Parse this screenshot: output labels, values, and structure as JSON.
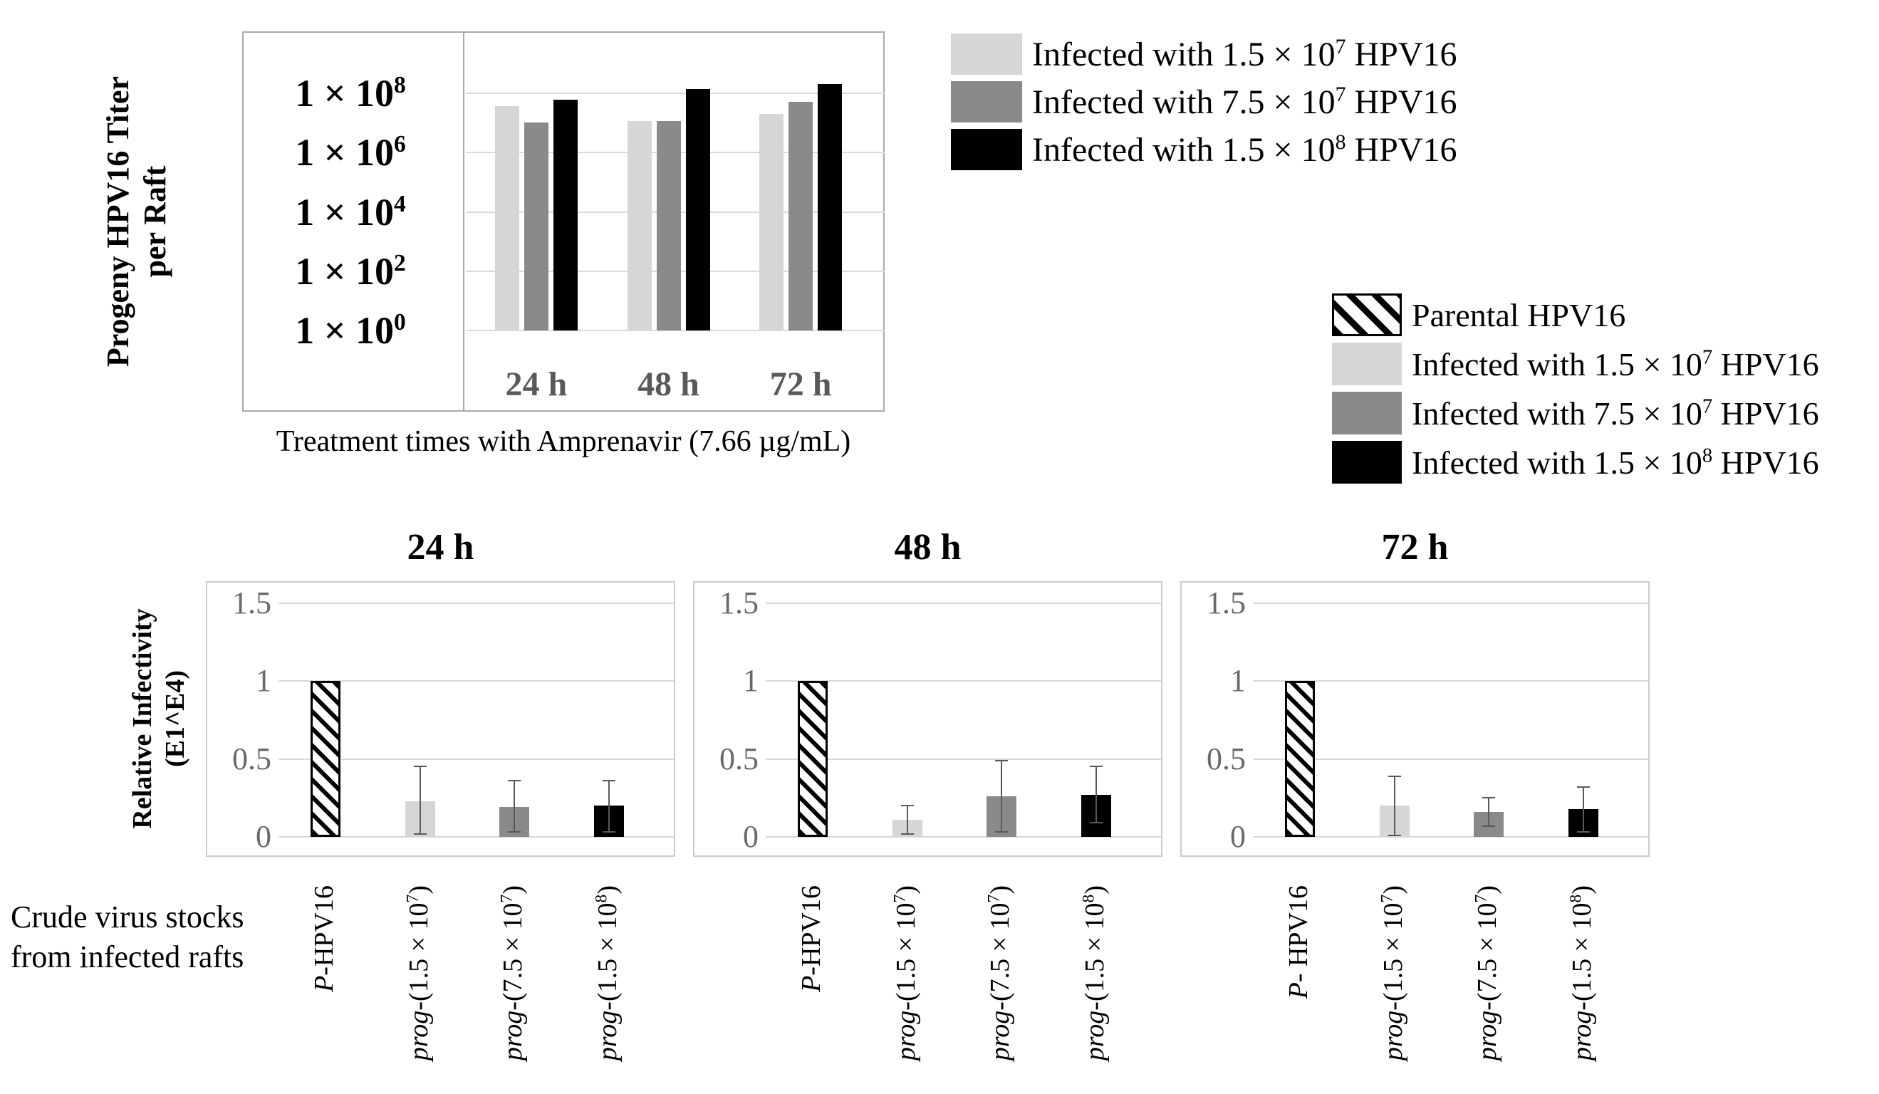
{
  "colors": {
    "light": "#d6d6d6",
    "mid": "#8a8a8a",
    "black": "#000000",
    "grid": "#d9d9d9",
    "box_border_top": "#a9a9a9",
    "box_border_bottom": "#cbcbcb",
    "tick_gray": "#595959",
    "tick_gray_light": "#696969",
    "whisker": "#595959"
  },
  "titer_axis": {
    "ylabel_line1": "Progeny HPV16 Titer",
    "ylabel_line2": "per Raft"
  },
  "infectivity_axis": {
    "line1": "Relative Infectivity",
    "line2": "(E1^E4)"
  },
  "crude_label": {
    "line1": "Crude virus stocks",
    "line2": "from infected rafts"
  },
  "legend_top": {
    "items": [
      {
        "key": "light",
        "pre": "Infected with 1.5 × 10",
        "exp": "7",
        "post": " HPV16"
      },
      {
        "key": "mid",
        "pre": "Infected with 7.5 × 10",
        "exp": "7",
        "post": " HPV16"
      },
      {
        "key": "black",
        "pre": "Infected with 1.5 × 10",
        "exp": "8",
        "post": " HPV16"
      }
    ]
  },
  "legend_bottom": {
    "items": [
      {
        "key": "hatch",
        "pre": "Parental HPV16",
        "exp": null,
        "post": ""
      },
      {
        "key": "light",
        "pre": "Infected with 1.5 × 10",
        "exp": "7",
        "post": " HPV16"
      },
      {
        "key": "mid",
        "pre": "Infected with 7.5 × 10",
        "exp": "7",
        "post": " HPV16"
      },
      {
        "key": "black",
        "pre": "Infected with 1.5 × 10",
        "exp": "8",
        "post": " HPV16"
      }
    ]
  },
  "chart_data": [
    {
      "id": "progeny_titer",
      "type": "bar",
      "scale": "log10",
      "ylabel_line1": "Progeny HPV16 Titer",
      "ylabel_line2": "per Raft",
      "xlabel": "Treatment times with Amprenavir (7.66 µg/mL)",
      "categories": [
        "24 h",
        "48 h",
        "72 h"
      ],
      "y_ticks": [
        {
          "base": "1 × 10",
          "exp": "8"
        },
        {
          "base": "1 × 10",
          "exp": "6"
        },
        {
          "base": "1 × 10",
          "exp": "4"
        },
        {
          "base": "1 × 10",
          "exp": "2"
        },
        {
          "base": "1 × 10",
          "exp": "0"
        }
      ],
      "y_tick_log10": [
        8,
        6,
        4,
        2,
        0
      ],
      "ylim_log10": [
        0,
        10
      ],
      "grid": true,
      "legend_position": "top-right",
      "series": [
        {
          "name": "Infected with 1.5 × 10^7 HPV16",
          "color_key": "light",
          "values_log10": [
            7.57,
            7.06,
            7.3
          ],
          "values_approx": [
            37000000.0,
            11000000.0,
            20000000.0
          ]
        },
        {
          "name": "Infected with 7.5 × 10^7 HPV16",
          "color_key": "mid",
          "values_log10": [
            7.01,
            7.06,
            7.71
          ],
          "values_approx": [
            10000000.0,
            11000000.0,
            51000000.0
          ]
        },
        {
          "name": "Infected with 1.5 × 10^8 HPV16",
          "color_key": "black",
          "values_log10": [
            7.78,
            8.14,
            8.31
          ],
          "values_approx": [
            60000000.0,
            140000000.0,
            200000000.0
          ]
        }
      ]
    },
    {
      "id": "rel_infectivity_24h",
      "type": "bar",
      "title": "24 h",
      "ylabel": "Relative Infectivity (E1^E4)",
      "y_ticks": [
        "1.5",
        "1",
        "0.5",
        "0"
      ],
      "y_tick_values": [
        1.5,
        1,
        0.5,
        0
      ],
      "ylim": [
        0,
        1.63
      ],
      "grid": true,
      "categories": [
        {
          "italic": "P",
          "rest": "-HPV16",
          "exp": null,
          "close": ""
        },
        {
          "italic": "prog",
          "rest": "-(1.5 × 10",
          "exp": "7",
          "close": ")"
        },
        {
          "italic": "prog",
          "rest": "-(7.5 × 10",
          "exp": "7",
          "close": ")"
        },
        {
          "italic": "prog",
          "rest": "-(1.5 × 10",
          "exp": "8",
          "close": ")"
        }
      ],
      "bars": [
        {
          "style": "hatch",
          "value": 1.0,
          "err_lo": null,
          "err_hi": null
        },
        {
          "style": "light",
          "value": 0.23,
          "err_lo": 0.02,
          "err_hi": 0.45
        },
        {
          "style": "mid",
          "value": 0.19,
          "err_lo": 0.03,
          "err_hi": 0.36
        },
        {
          "style": "black",
          "value": 0.2,
          "err_lo": 0.03,
          "err_hi": 0.36
        }
      ]
    },
    {
      "id": "rel_infectivity_48h",
      "type": "bar",
      "title": "48 h",
      "ylabel": "Relative Infectivity (E1^E4)",
      "y_ticks": [
        "1.5",
        "1",
        "0.5",
        "0"
      ],
      "y_tick_values": [
        1.5,
        1,
        0.5,
        0
      ],
      "ylim": [
        0,
        1.63
      ],
      "grid": true,
      "categories": [
        {
          "italic": "P",
          "rest": "-HPV16",
          "exp": null,
          "close": ""
        },
        {
          "italic": "prog",
          "rest": "-(1.5 × 10",
          "exp": "7",
          "close": ")"
        },
        {
          "italic": "prog",
          "rest": "-(7.5 × 10",
          "exp": "7",
          "close": ")"
        },
        {
          "italic": "prog",
          "rest": "-(1.5 × 10",
          "exp": "8",
          "close": ")"
        }
      ],
      "bars": [
        {
          "style": "hatch",
          "value": 1.0,
          "err_lo": null,
          "err_hi": null
        },
        {
          "style": "light",
          "value": 0.11,
          "err_lo": 0.02,
          "err_hi": 0.2
        },
        {
          "style": "mid",
          "value": 0.26,
          "err_lo": 0.03,
          "err_hi": 0.49
        },
        {
          "style": "black",
          "value": 0.27,
          "err_lo": 0.09,
          "err_hi": 0.45
        }
      ]
    },
    {
      "id": "rel_infectivity_72h",
      "type": "bar",
      "title": "72 h",
      "ylabel": "Relative Infectivity (E1^E4)",
      "y_ticks": [
        "1.5",
        "1",
        "0.5",
        "0"
      ],
      "y_tick_values": [
        1.5,
        1,
        0.5,
        0
      ],
      "ylim": [
        0,
        1.63
      ],
      "grid": true,
      "categories": [
        {
          "italic": "P",
          "rest": "- HPV16",
          "exp": null,
          "close": ""
        },
        {
          "italic": "prog",
          "rest": "-(1.5 × 10",
          "exp": "7",
          "close": ")"
        },
        {
          "italic": "prog",
          "rest": "-(7.5 × 10",
          "exp": "7",
          "close": ")"
        },
        {
          "italic": "prog",
          "rest": "-(1.5 × 10",
          "exp": "8",
          "close": ")"
        }
      ],
      "bars": [
        {
          "style": "hatch",
          "value": 1.0,
          "err_lo": null,
          "err_hi": null
        },
        {
          "style": "light",
          "value": 0.2,
          "err_lo": 0.01,
          "err_hi": 0.39
        },
        {
          "style": "mid",
          "value": 0.16,
          "err_lo": 0.07,
          "err_hi": 0.25
        },
        {
          "style": "black",
          "value": 0.18,
          "err_lo": 0.03,
          "err_hi": 0.32
        }
      ]
    }
  ]
}
